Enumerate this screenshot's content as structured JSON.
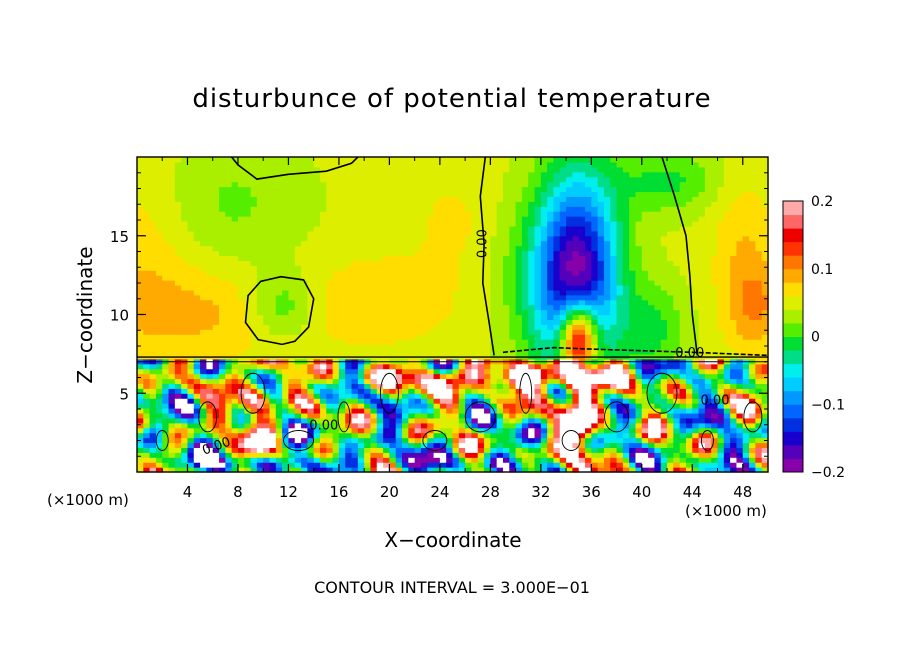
{
  "chart_data": {
    "type": "heatmap",
    "title": "disturbunce of potential temperature",
    "xlabel": "X−coordinate",
    "ylabel": "Z−coordinate",
    "x_unit": "(×1000 m)",
    "x_unit_right": "(×1000 m)",
    "xlim": [
      0,
      50
    ],
    "ylim": [
      0,
      20
    ],
    "x_ticks": [
      "4",
      "8",
      "12",
      "16",
      "20",
      "24",
      "28",
      "32",
      "36",
      "40",
      "44",
      "48"
    ],
    "y_ticks": [
      "5",
      "10",
      "15"
    ],
    "colorbar": {
      "ticks": [
        "0.2",
        "0.1",
        "0",
        "−0.1",
        "−0.2"
      ],
      "range": [
        -0.2,
        0.2
      ],
      "levels": 20
    },
    "contour_label": "0.00",
    "contour_interval": "CONTOUR INTERVAL = 3.000E−01"
  }
}
